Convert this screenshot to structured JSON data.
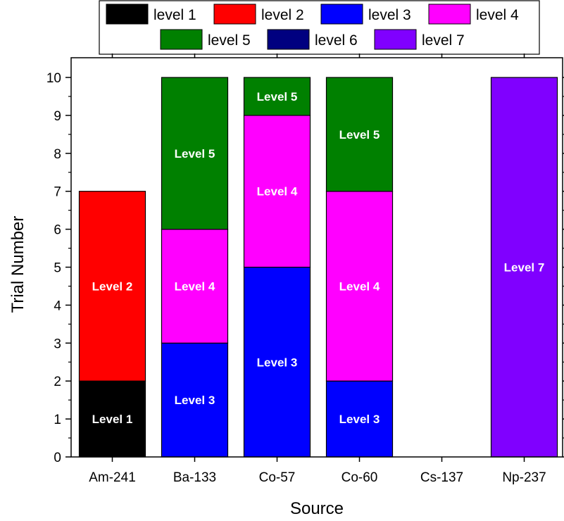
{
  "chart_data": {
    "type": "bar",
    "stacked": true,
    "categories": [
      "Am-241",
      "Ba-133",
      "Co-57",
      "Co-60",
      "Cs-137",
      "Np-237"
    ],
    "xlabel": "Source",
    "ylabel": "Trial Number",
    "ylim": [
      0,
      10
    ],
    "yticks": [
      "0",
      "1",
      "2",
      "3",
      "4",
      "5",
      "6",
      "7",
      "8",
      "9",
      "10"
    ],
    "grid": false,
    "legend_position": "top",
    "series": [
      {
        "name": "level 1",
        "color": "#000000",
        "bar_label": "Level 1",
        "values": [
          2,
          0,
          0,
          0,
          0,
          0
        ]
      },
      {
        "name": "level 2",
        "color": "#ff0000",
        "bar_label": "Level 2",
        "values": [
          5,
          0,
          0,
          0,
          0,
          0
        ]
      },
      {
        "name": "level 3",
        "color": "#0000ff",
        "bar_label": "Level 3",
        "values": [
          0,
          3,
          5,
          2,
          0,
          0
        ]
      },
      {
        "name": "level 4",
        "color": "#ff00ff",
        "bar_label": "Level 4",
        "values": [
          0,
          3,
          4,
          5,
          0,
          0
        ]
      },
      {
        "name": "level 5",
        "color": "#008000",
        "bar_label": "Level 5",
        "values": [
          0,
          4,
          1,
          3,
          0,
          0
        ]
      },
      {
        "name": "level 6",
        "color": "#000080",
        "bar_label": "Level 6",
        "values": [
          0,
          0,
          0,
          0,
          0,
          0
        ]
      },
      {
        "name": "level 7",
        "color": "#8000ff",
        "bar_label": "Level 7",
        "values": [
          0,
          0,
          0,
          0,
          0,
          10
        ]
      }
    ]
  }
}
